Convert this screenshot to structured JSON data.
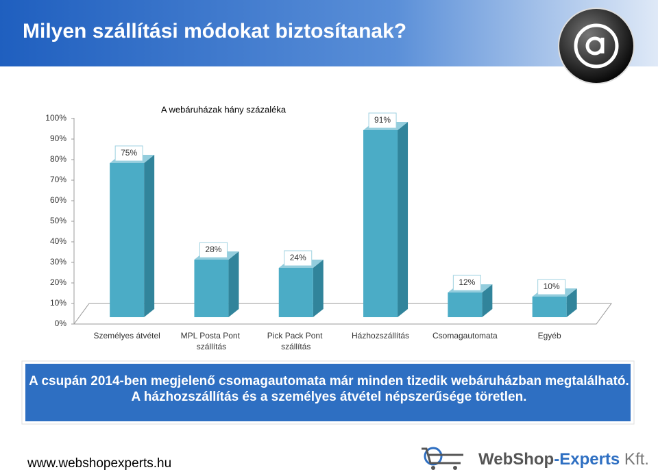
{
  "slide_title": "Milyen szállítási módokat biztosítanak?",
  "chart_data": {
    "type": "bar3d",
    "title": "A webáruházak hány százaléka",
    "categories": [
      "Személyes átvétel",
      "MPL Posta Pont szállítás",
      "Pick Pack Pont szállítás",
      "Házhozszállítás",
      "Csomagautomata",
      "Egyéb"
    ],
    "values": [
      75,
      28,
      24,
      91,
      12,
      10
    ],
    "value_labels": [
      "75%",
      "28%",
      "24%",
      "91%",
      "12%",
      "10%"
    ],
    "color": "#4bacc6",
    "ylim": [
      0,
      100
    ],
    "yticks": [
      {
        "value": 0,
        "label": "0%"
      },
      {
        "value": 10,
        "label": "10%"
      },
      {
        "value": 20,
        "label": "20%"
      },
      {
        "value": 30,
        "label": "30%"
      },
      {
        "value": 40,
        "label": "40%"
      },
      {
        "value": 50,
        "label": "50%"
      },
      {
        "value": 60,
        "label": "60%"
      },
      {
        "value": 70,
        "label": "70%"
      },
      {
        "value": 80,
        "label": "80%"
      },
      {
        "value": 90,
        "label": "90%"
      },
      {
        "value": 100,
        "label": "100%"
      }
    ],
    "grid": false
  },
  "callout": [
    "A csupán 2014-ben megjelenő csomagautomata már minden tizedik webáruházban megtalálható.",
    "A házhozszállítás és a személyes átvétel népszerűsége töretlen."
  ],
  "footer_url": "www.webshopexperts.hu",
  "logo": [
    "WebShop",
    "-Experts",
    " Kft."
  ]
}
